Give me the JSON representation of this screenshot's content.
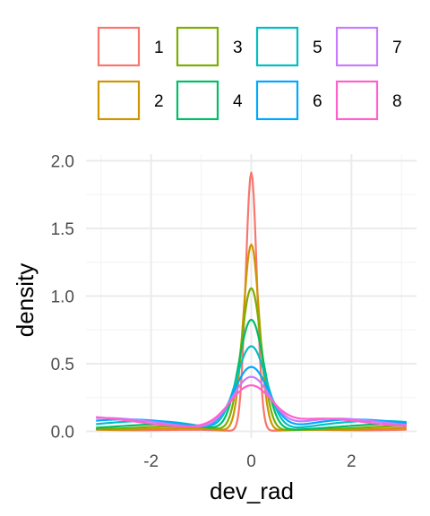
{
  "chart_data": {
    "type": "line",
    "title": "",
    "xlabel": "dev_rad",
    "ylabel": "density",
    "xlim": [
      -3.3,
      3.3
    ],
    "ylim": [
      -0.05,
      2.05
    ],
    "x_ticks": [
      -2,
      0,
      2
    ],
    "y_ticks": [
      0.0,
      0.5,
      1.0,
      1.5,
      2.0
    ],
    "x_tick_labels": [
      "-2",
      "0",
      "2"
    ],
    "y_tick_labels": [
      "0.0",
      "0.5",
      "1.0",
      "1.5",
      "2.0"
    ],
    "grid": true,
    "legend_position": "top",
    "series": [
      {
        "name": "1",
        "color": "#F8766D",
        "peak": 1.92,
        "sigma": 0.11,
        "baseline": 0.02
      },
      {
        "name": "2",
        "color": "#CD9600",
        "peak": 1.39,
        "sigma": 0.16,
        "baseline": 0.03
      },
      {
        "name": "3",
        "color": "#7CAE00",
        "peak": 1.07,
        "sigma": 0.2,
        "baseline": 0.04
      },
      {
        "name": "4",
        "color": "#00BE67",
        "peak": 0.84,
        "sigma": 0.25,
        "baseline": 0.05
      },
      {
        "name": "5",
        "color": "#00BFC4",
        "peak": 0.65,
        "sigma": 0.3,
        "baseline": 0.07
      },
      {
        "name": "6",
        "color": "#00A9FF",
        "peak": 0.5,
        "sigma": 0.35,
        "baseline": 0.08
      },
      {
        "name": "7",
        "color": "#C77CFF",
        "peak": 0.43,
        "sigma": 0.38,
        "baseline": 0.09
      },
      {
        "name": "8",
        "color": "#FF61CC",
        "peak": 0.37,
        "sigma": 0.42,
        "baseline": 0.1
      }
    ]
  }
}
